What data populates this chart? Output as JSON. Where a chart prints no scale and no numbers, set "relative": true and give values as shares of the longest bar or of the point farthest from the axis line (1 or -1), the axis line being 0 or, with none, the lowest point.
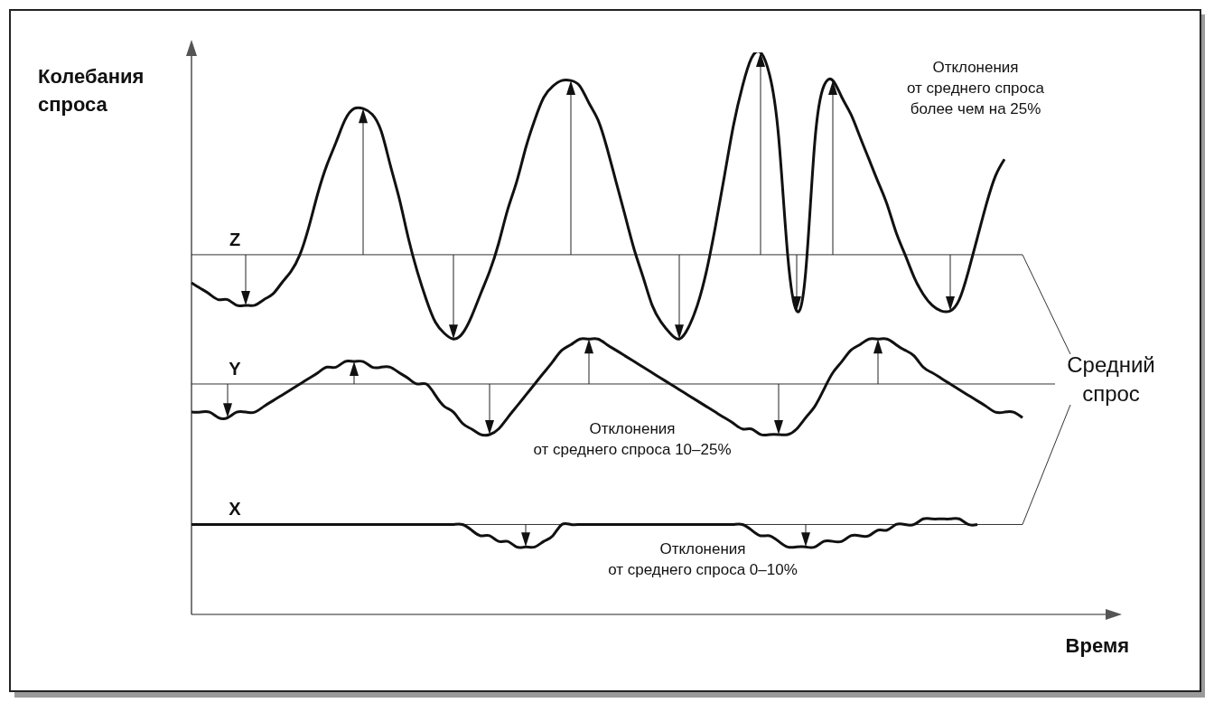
{
  "chart_data": {
    "type": "line",
    "relative": true,
    "xlabel": "Время",
    "ylabel": "Колебания\nспроса",
    "categories": [
      null,
      null,
      null,
      null,
      null,
      null,
      null,
      null,
      null,
      null,
      null,
      null,
      null,
      null,
      null,
      null,
      null,
      null,
      null,
      null,
      null,
      null,
      null,
      null,
      null,
      null,
      null,
      null,
      null,
      null,
      null,
      null,
      null,
      null,
      null,
      null,
      null,
      null,
      null,
      null,
      null,
      null,
      null,
      null,
      null,
      null,
      null,
      null,
      null,
      null,
      null,
      null,
      null,
      null,
      null,
      null,
      null,
      null,
      null,
      null,
      null,
      null,
      null,
      null,
      null,
      null,
      null,
      null,
      null,
      null,
      null,
      null,
      null,
      null,
      null,
      null,
      null,
      null,
      null,
      null,
      null,
      null,
      null,
      null,
      null,
      null,
      null,
      null,
      null,
      null,
      null,
      null,
      null,
      null,
      null,
      null,
      null,
      null,
      null,
      null,
      null,
      null,
      null
    ],
    "series": [
      {
        "color": "#111111",
        "values": [
          0.59,
          0.58,
          0.57,
          0.56,
          0.56,
          0.55,
          0.55,
          0.55,
          0.56,
          0.57,
          0.59,
          0.61,
          0.64,
          0.69,
          0.75,
          0.8,
          0.84,
          0.88,
          0.9,
          0.9,
          0.89,
          0.86,
          0.8,
          0.74,
          0.67,
          0.61,
          0.56,
          0.52,
          0.5,
          0.49,
          0.5,
          0.53,
          0.57,
          0.61,
          0.66,
          0.72,
          0.77,
          0.83,
          0.88,
          0.92,
          0.94,
          0.95,
          0.95,
          0.94,
          0.91,
          0.88,
          0.83,
          0.77,
          0.71,
          0.65,
          0.6,
          0.55,
          0.52,
          0.5,
          0.49,
          0.51,
          0.55,
          0.61,
          0.69,
          0.78,
          0.87,
          0.94,
          0.99,
          1.0,
          0.96,
          0.85,
          0.64,
          0.54,
          0.61,
          0.84,
          0.94,
          0.95,
          0.92,
          0.89,
          0.85,
          0.81,
          0.77,
          0.73,
          0.68,
          0.64,
          0.6,
          0.57,
          0.55,
          0.54,
          0.54,
          0.56,
          0.61,
          0.67,
          0.73,
          0.78,
          0.81,
          null,
          null,
          null,
          null,
          null,
          null,
          null,
          null,
          null,
          null,
          null,
          null
        ]
      },
      {
        "color": "#111111",
        "values": [
          0.36,
          0.36,
          0.36,
          0.35,
          0.35,
          0.36,
          0.36,
          0.36,
          0.37,
          0.38,
          0.39,
          0.4,
          0.41,
          0.42,
          0.43,
          0.44,
          0.44,
          0.45,
          0.45,
          0.45,
          0.44,
          0.44,
          0.44,
          0.43,
          0.42,
          0.41,
          0.41,
          0.39,
          0.37,
          0.36,
          0.34,
          0.33,
          0.32,
          0.32,
          0.33,
          0.35,
          0.37,
          0.39,
          0.41,
          0.43,
          0.45,
          0.47,
          0.48,
          0.49,
          0.49,
          0.49,
          0.48,
          0.47,
          0.46,
          0.45,
          0.44,
          0.43,
          0.42,
          0.41,
          0.4,
          0.39,
          0.38,
          0.37,
          0.36,
          0.35,
          0.34,
          0.33,
          0.33,
          0.32,
          0.32,
          0.32,
          0.32,
          0.33,
          0.35,
          0.37,
          0.4,
          0.43,
          0.45,
          0.47,
          0.48,
          0.49,
          0.49,
          0.49,
          0.48,
          0.47,
          0.46,
          0.44,
          0.43,
          0.42,
          0.41,
          0.4,
          0.39,
          0.38,
          0.37,
          0.36,
          0.36,
          0.36,
          0.35,
          null,
          null,
          null,
          null,
          null,
          null,
          null,
          null,
          null,
          null
        ]
      },
      {
        "color": "#111111",
        "values": [
          0.16,
          0.16,
          0.16,
          0.16,
          0.16,
          0.16,
          0.16,
          0.16,
          0.16,
          0.16,
          0.16,
          0.16,
          0.16,
          0.16,
          0.16,
          0.16,
          0.16,
          0.16,
          0.16,
          0.16,
          0.16,
          0.16,
          0.16,
          0.16,
          0.16,
          0.16,
          0.16,
          0.16,
          0.16,
          0.16,
          0.16,
          0.15,
          0.14,
          0.14,
          0.13,
          0.13,
          0.12,
          0.12,
          0.12,
          0.13,
          0.14,
          0.16,
          0.16,
          0.16,
          0.16,
          0.16,
          0.16,
          0.16,
          0.16,
          0.16,
          0.16,
          0.16,
          0.16,
          0.16,
          0.16,
          0.16,
          0.16,
          0.16,
          0.16,
          0.16,
          0.16,
          0.16,
          0.15,
          0.14,
          0.14,
          0.13,
          0.12,
          0.12,
          0.12,
          0.12,
          0.13,
          0.13,
          0.13,
          0.14,
          0.14,
          0.14,
          0.15,
          0.15,
          0.16,
          0.16,
          0.16,
          0.17,
          0.17,
          0.17,
          0.17,
          0.17,
          0.16,
          0.16,
          null,
          null,
          null,
          null,
          null,
          null,
          null,
          null,
          null,
          null,
          null,
          null,
          null,
          null,
          null
        ]
      }
    ],
    "ref_lines": [
      {
        "axis": "y",
        "value": 0.64,
        "label": "Z"
      },
      {
        "axis": "y",
        "value": 0.41,
        "label": "Y"
      },
      {
        "axis": "y",
        "value": 0.16,
        "label": "X"
      }
    ],
    "annotations": [
      "Отклонения\nот среднего спроса\nболее чем на 25%",
      "Отклонения\nот среднего спроса 10–25%",
      "Отклонения\nот среднего спроса 0–10%",
      "Средний\nспрос"
    ]
  }
}
